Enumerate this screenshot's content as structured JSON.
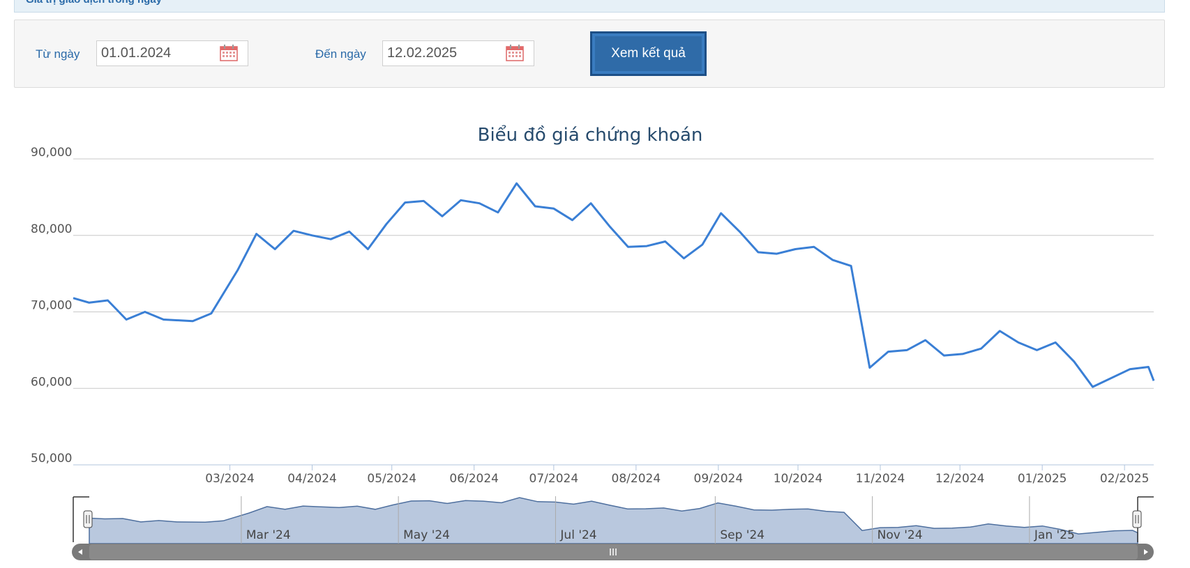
{
  "header": {
    "title": "Giá trị giao dịch trong ngày"
  },
  "filters": {
    "from_label": "Từ ngày",
    "from_value": "01.01.2024",
    "to_label": "Đến ngày",
    "to_value": "12.02.2025",
    "submit_label": "Xem kết quả"
  },
  "colors": {
    "line": "#3a7fd5",
    "navigator_fill": "#b9c8de",
    "grid": "#c8c8c8",
    "title": "#274b6d"
  },
  "chart_data": {
    "type": "line",
    "title": "Biểu đồ giá chứng khoán",
    "ylim": [
      50000,
      90000
    ],
    "y_ticks": [
      "90,000",
      "80,000",
      "70,000",
      "60,000",
      "50,000"
    ],
    "x_ticks": [
      {
        "label": "03/2024",
        "date": "2024-03-01"
      },
      {
        "label": "04/2024",
        "date": "2024-04-01"
      },
      {
        "label": "05/2024",
        "date": "2024-05-01"
      },
      {
        "label": "06/2024",
        "date": "2024-06-01"
      },
      {
        "label": "07/2024",
        "date": "2024-07-01"
      },
      {
        "label": "08/2024",
        "date": "2024-08-01"
      },
      {
        "label": "09/2024",
        "date": "2024-09-01"
      },
      {
        "label": "10/2024",
        "date": "2024-10-01"
      },
      {
        "label": "11/2024",
        "date": "2024-11-01"
      },
      {
        "label": "12/2024",
        "date": "2024-12-01"
      },
      {
        "label": "01/2025",
        "date": "2025-01-01"
      },
      {
        "label": "02/2025",
        "date": "2025-02-01"
      }
    ],
    "navigator_ticks": [
      {
        "label": "Mar '24",
        "date": "2024-03-01"
      },
      {
        "label": "May '24",
        "date": "2024-05-01"
      },
      {
        "label": "Jul '24",
        "date": "2024-07-01"
      },
      {
        "label": "Sep '24",
        "date": "2024-09-01"
      },
      {
        "label": "Nov '24",
        "date": "2024-11-01"
      },
      {
        "label": "Jan '25",
        "date": "2025-01-01"
      }
    ],
    "x": [
      "2024-01-02",
      "2024-01-08",
      "2024-01-15",
      "2024-01-22",
      "2024-01-29",
      "2024-02-05",
      "2024-02-16",
      "2024-02-23",
      "2024-03-04",
      "2024-03-11",
      "2024-03-18",
      "2024-03-25",
      "2024-04-01",
      "2024-04-08",
      "2024-04-15",
      "2024-04-22",
      "2024-04-29",
      "2024-05-06",
      "2024-05-13",
      "2024-05-20",
      "2024-05-27",
      "2024-06-03",
      "2024-06-10",
      "2024-06-17",
      "2024-06-24",
      "2024-07-01",
      "2024-07-08",
      "2024-07-15",
      "2024-07-22",
      "2024-07-29",
      "2024-08-05",
      "2024-08-12",
      "2024-08-19",
      "2024-08-26",
      "2024-09-02",
      "2024-09-09",
      "2024-09-16",
      "2024-09-23",
      "2024-09-30",
      "2024-10-07",
      "2024-10-14",
      "2024-10-21",
      "2024-10-28",
      "2024-11-04",
      "2024-11-11",
      "2024-11-18",
      "2024-11-25",
      "2024-12-02",
      "2024-12-09",
      "2024-12-16",
      "2024-12-23",
      "2024-12-30",
      "2025-01-06",
      "2025-01-13",
      "2025-01-20",
      "2025-02-03",
      "2025-02-10",
      "2025-02-12"
    ],
    "series": [
      {
        "values": [
          71800,
          71200,
          71500,
          69000,
          70000,
          69000,
          68800,
          69800,
          75500,
          80200,
          78200,
          80600,
          80000,
          79500,
          80500,
          78200,
          81500,
          84300,
          84500,
          82500,
          84600,
          84200,
          83000,
          86800,
          83800,
          83500,
          82000,
          84200,
          81200,
          78500,
          78600,
          79200,
          77000,
          78800,
          82900,
          80500,
          77800,
          77600,
          78200,
          78500,
          76800,
          76000,
          62700,
          64800,
          65000,
          66300,
          64300,
          64500,
          65200,
          67500,
          66000,
          65000,
          66000,
          63500,
          60200,
          62500,
          62800,
          61000
        ]
      }
    ]
  }
}
